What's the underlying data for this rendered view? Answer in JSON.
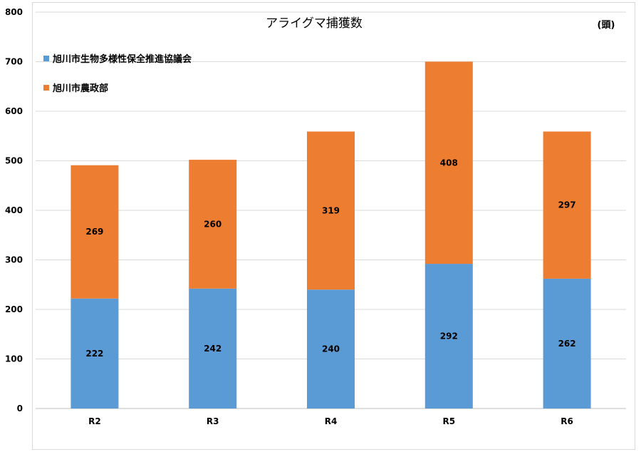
{
  "chart_data": {
    "type": "bar",
    "stacked": true,
    "title": "アライグマ捕獲数",
    "unit_label": "(頭)",
    "categories": [
      "R2",
      "R3",
      "R4",
      "R5",
      "R6"
    ],
    "series": [
      {
        "name": "旭川市生物多様性保全推進協議会",
        "color": "#5B9BD5",
        "values": [
          222,
          242,
          240,
          292,
          262
        ]
      },
      {
        "name": "旭川市農政部",
        "color": "#ED7D31",
        "values": [
          269,
          260,
          319,
          408,
          297
        ]
      }
    ],
    "ylim": [
      0,
      800
    ],
    "yticks": [
      0,
      100,
      200,
      300,
      400,
      500,
      600,
      700,
      800
    ],
    "grid": true,
    "legend_position": "top-left"
  }
}
